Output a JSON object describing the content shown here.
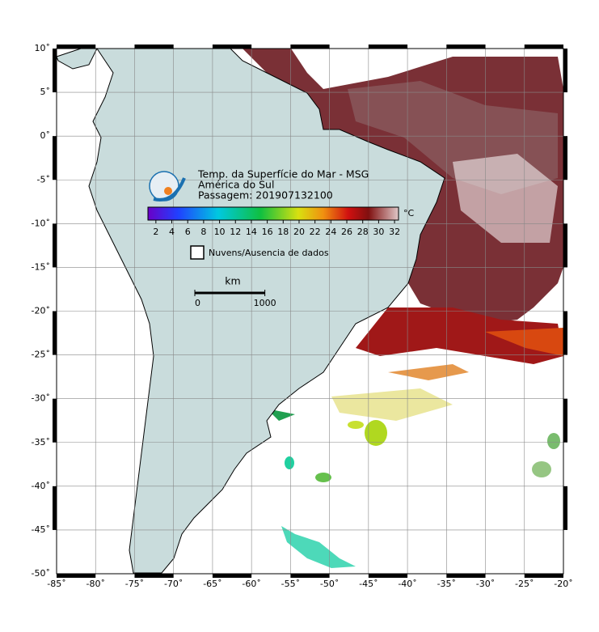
{
  "map": {
    "title": "Temp. da Superfície do Mar - MSG",
    "subtitle": "América do Sul",
    "pass": "Passagem: 201907132100",
    "xlim": [
      -85,
      -20
    ],
    "ylim": [
      -50,
      10
    ],
    "xticks": [
      {
        "value": -85,
        "label": "-85˚"
      },
      {
        "value": -80,
        "label": "-80˚"
      },
      {
        "value": -75,
        "label": "-75˚"
      },
      {
        "value": -70,
        "label": "-70˚"
      },
      {
        "value": -65,
        "label": "-65˚"
      },
      {
        "value": -60,
        "label": "-60˚"
      },
      {
        "value": -55,
        "label": "-55˚"
      },
      {
        "value": -50,
        "label": "-50˚"
      },
      {
        "value": -45,
        "label": "-45˚"
      },
      {
        "value": -40,
        "label": "-40˚"
      },
      {
        "value": -35,
        "label": "-35˚"
      },
      {
        "value": -30,
        "label": "-30˚"
      },
      {
        "value": -25,
        "label": "-25˚"
      },
      {
        "value": -20,
        "label": "-20˚"
      }
    ],
    "yticks": [
      {
        "value": 10,
        "label": "10˚"
      },
      {
        "value": 5,
        "label": "5˚"
      },
      {
        "value": 0,
        "label": "0˚"
      },
      {
        "value": -5,
        "label": "-5˚"
      },
      {
        "value": -10,
        "label": "-10˚"
      },
      {
        "value": -15,
        "label": "-15˚"
      },
      {
        "value": -20,
        "label": "-20˚"
      },
      {
        "value": -25,
        "label": "-25˚"
      },
      {
        "value": -30,
        "label": "-30˚"
      },
      {
        "value": -35,
        "label": "-35˚"
      },
      {
        "value": -40,
        "label": "-40˚"
      },
      {
        "value": -45,
        "label": "-45˚"
      },
      {
        "value": -50,
        "label": "-50˚"
      }
    ],
    "colorbar": {
      "unit": "°C",
      "range": [
        1,
        32.5
      ],
      "ticks": [
        2,
        4,
        6,
        8,
        10,
        12,
        14,
        16,
        18,
        20,
        22,
        24,
        26,
        28,
        30,
        32
      ]
    },
    "legend": "Nuvens/Ausencia de dados",
    "scale": {
      "unit": "km",
      "ticks": [
        0,
        1000
      ]
    }
  }
}
